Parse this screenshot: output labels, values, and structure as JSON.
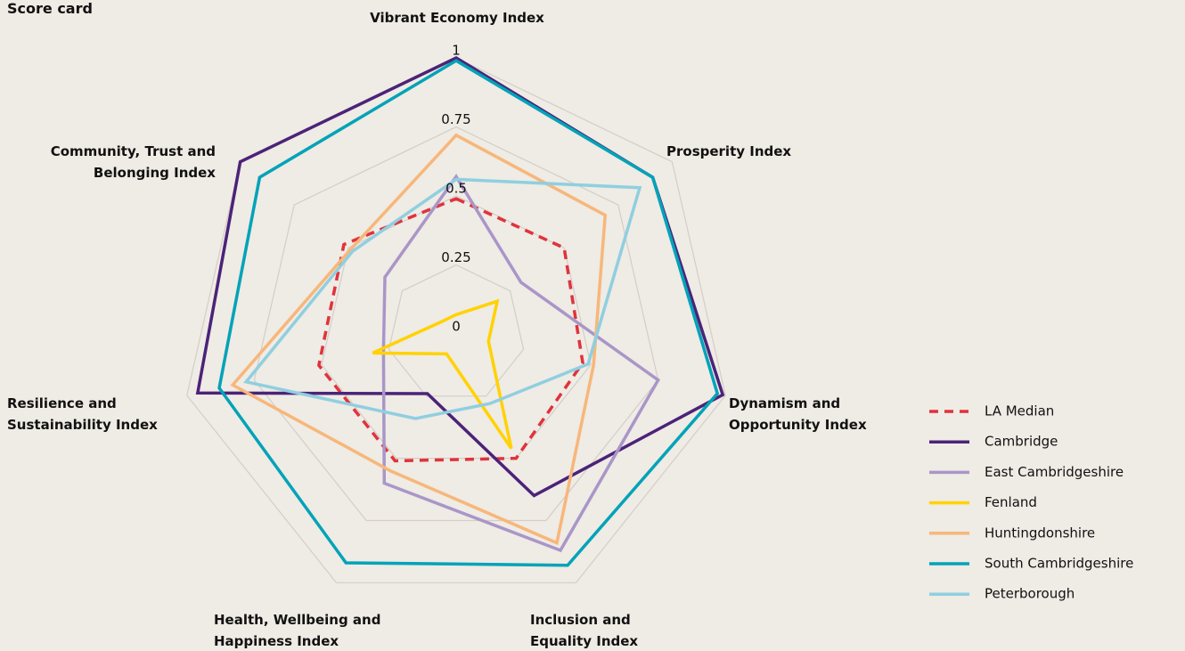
{
  "chart_data": {
    "type": "radar",
    "title": "Score card",
    "categories": [
      "Vibrant Economy Index",
      "Prosperity Index",
      "Dynamism and Opportunity Index",
      "Inclusion and Equality Index",
      "Health, Wellbeing and Happiness Index",
      "Resilience and Sustainability Index",
      "Community, Trust and Belonging Index"
    ],
    "rlim": [
      0,
      1
    ],
    "rticks": [
      0,
      0.25,
      0.5,
      0.75,
      1
    ],
    "grid": true,
    "legend": "right",
    "series": [
      {
        "name": "LA Median",
        "color": "#e0333c",
        "linestyle": "dashed",
        "values": [
          0.49,
          0.5,
          0.47,
          0.5,
          0.51,
          0.51,
          0.52
        ]
      },
      {
        "name": "Cambridge",
        "color": "#4b2378",
        "linestyle": "solid",
        "values": [
          1.0,
          0.91,
          0.99,
          0.65,
          0.24,
          0.96,
          1.0
        ]
      },
      {
        "name": "East Cambridgeshire",
        "color": "#a996c8",
        "linestyle": "solid",
        "values": [
          0.57,
          0.3,
          0.75,
          0.87,
          0.6,
          0.27,
          0.33
        ]
      },
      {
        "name": "Fenland",
        "color": "#ffd200",
        "linestyle": "solid",
        "values": [
          0.07,
          0.19,
          0.12,
          0.46,
          0.08,
          0.31,
          0.07
        ]
      },
      {
        "name": "Huntingdonshire",
        "color": "#f7b77a",
        "linestyle": "solid",
        "values": [
          0.72,
          0.69,
          0.51,
          0.84,
          0.55,
          0.83,
          0.49
        ]
      },
      {
        "name": "South Cambridgeshire",
        "color": "#00a3b8",
        "linestyle": "solid",
        "values": [
          0.99,
          0.91,
          0.97,
          0.93,
          0.92,
          0.88,
          0.91
        ]
      },
      {
        "name": "Peterborough",
        "color": "#8fcfe0",
        "linestyle": "solid",
        "values": [
          0.56,
          0.85,
          0.49,
          0.28,
          0.34,
          0.78,
          0.48
        ]
      }
    ]
  }
}
